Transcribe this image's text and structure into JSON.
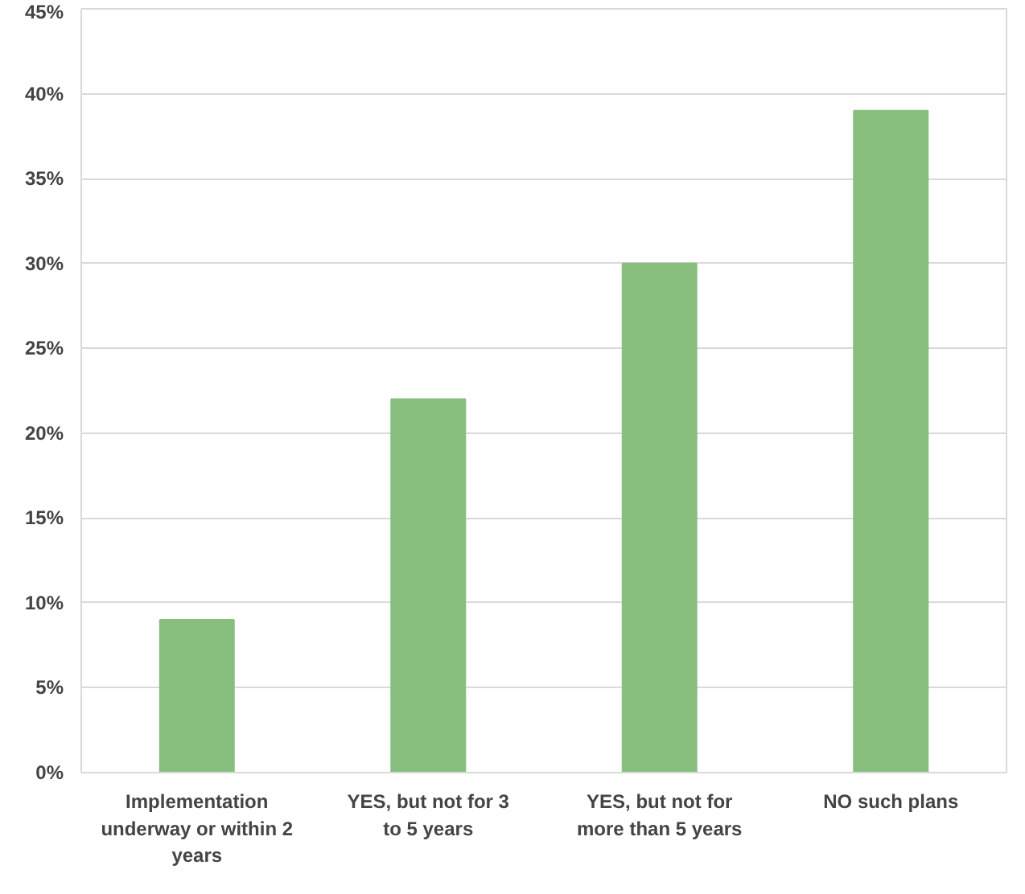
{
  "chart_data": {
    "type": "bar",
    "categories": [
      "Implementation underway or within 2 years",
      "YES, but not for 3 to 5 years",
      "YES, but not for more than 5 years",
      "NO such plans"
    ],
    "values": [
      9,
      22,
      30,
      39
    ],
    "color": "#88bf7f",
    "ylim": [
      0,
      45
    ],
    "yticks": [
      {
        "value": 0,
        "label": "0%"
      },
      {
        "value": 5,
        "label": "5%"
      },
      {
        "value": 10,
        "label": "10%"
      },
      {
        "value": 15,
        "label": "15%"
      },
      {
        "value": 20,
        "label": "20%"
      },
      {
        "value": 25,
        "label": "25%"
      },
      {
        "value": 30,
        "label": "30%"
      },
      {
        "value": 35,
        "label": "35%"
      },
      {
        "value": 40,
        "label": "40%"
      },
      {
        "value": 45,
        "label": "45%"
      }
    ],
    "grid": "y"
  }
}
